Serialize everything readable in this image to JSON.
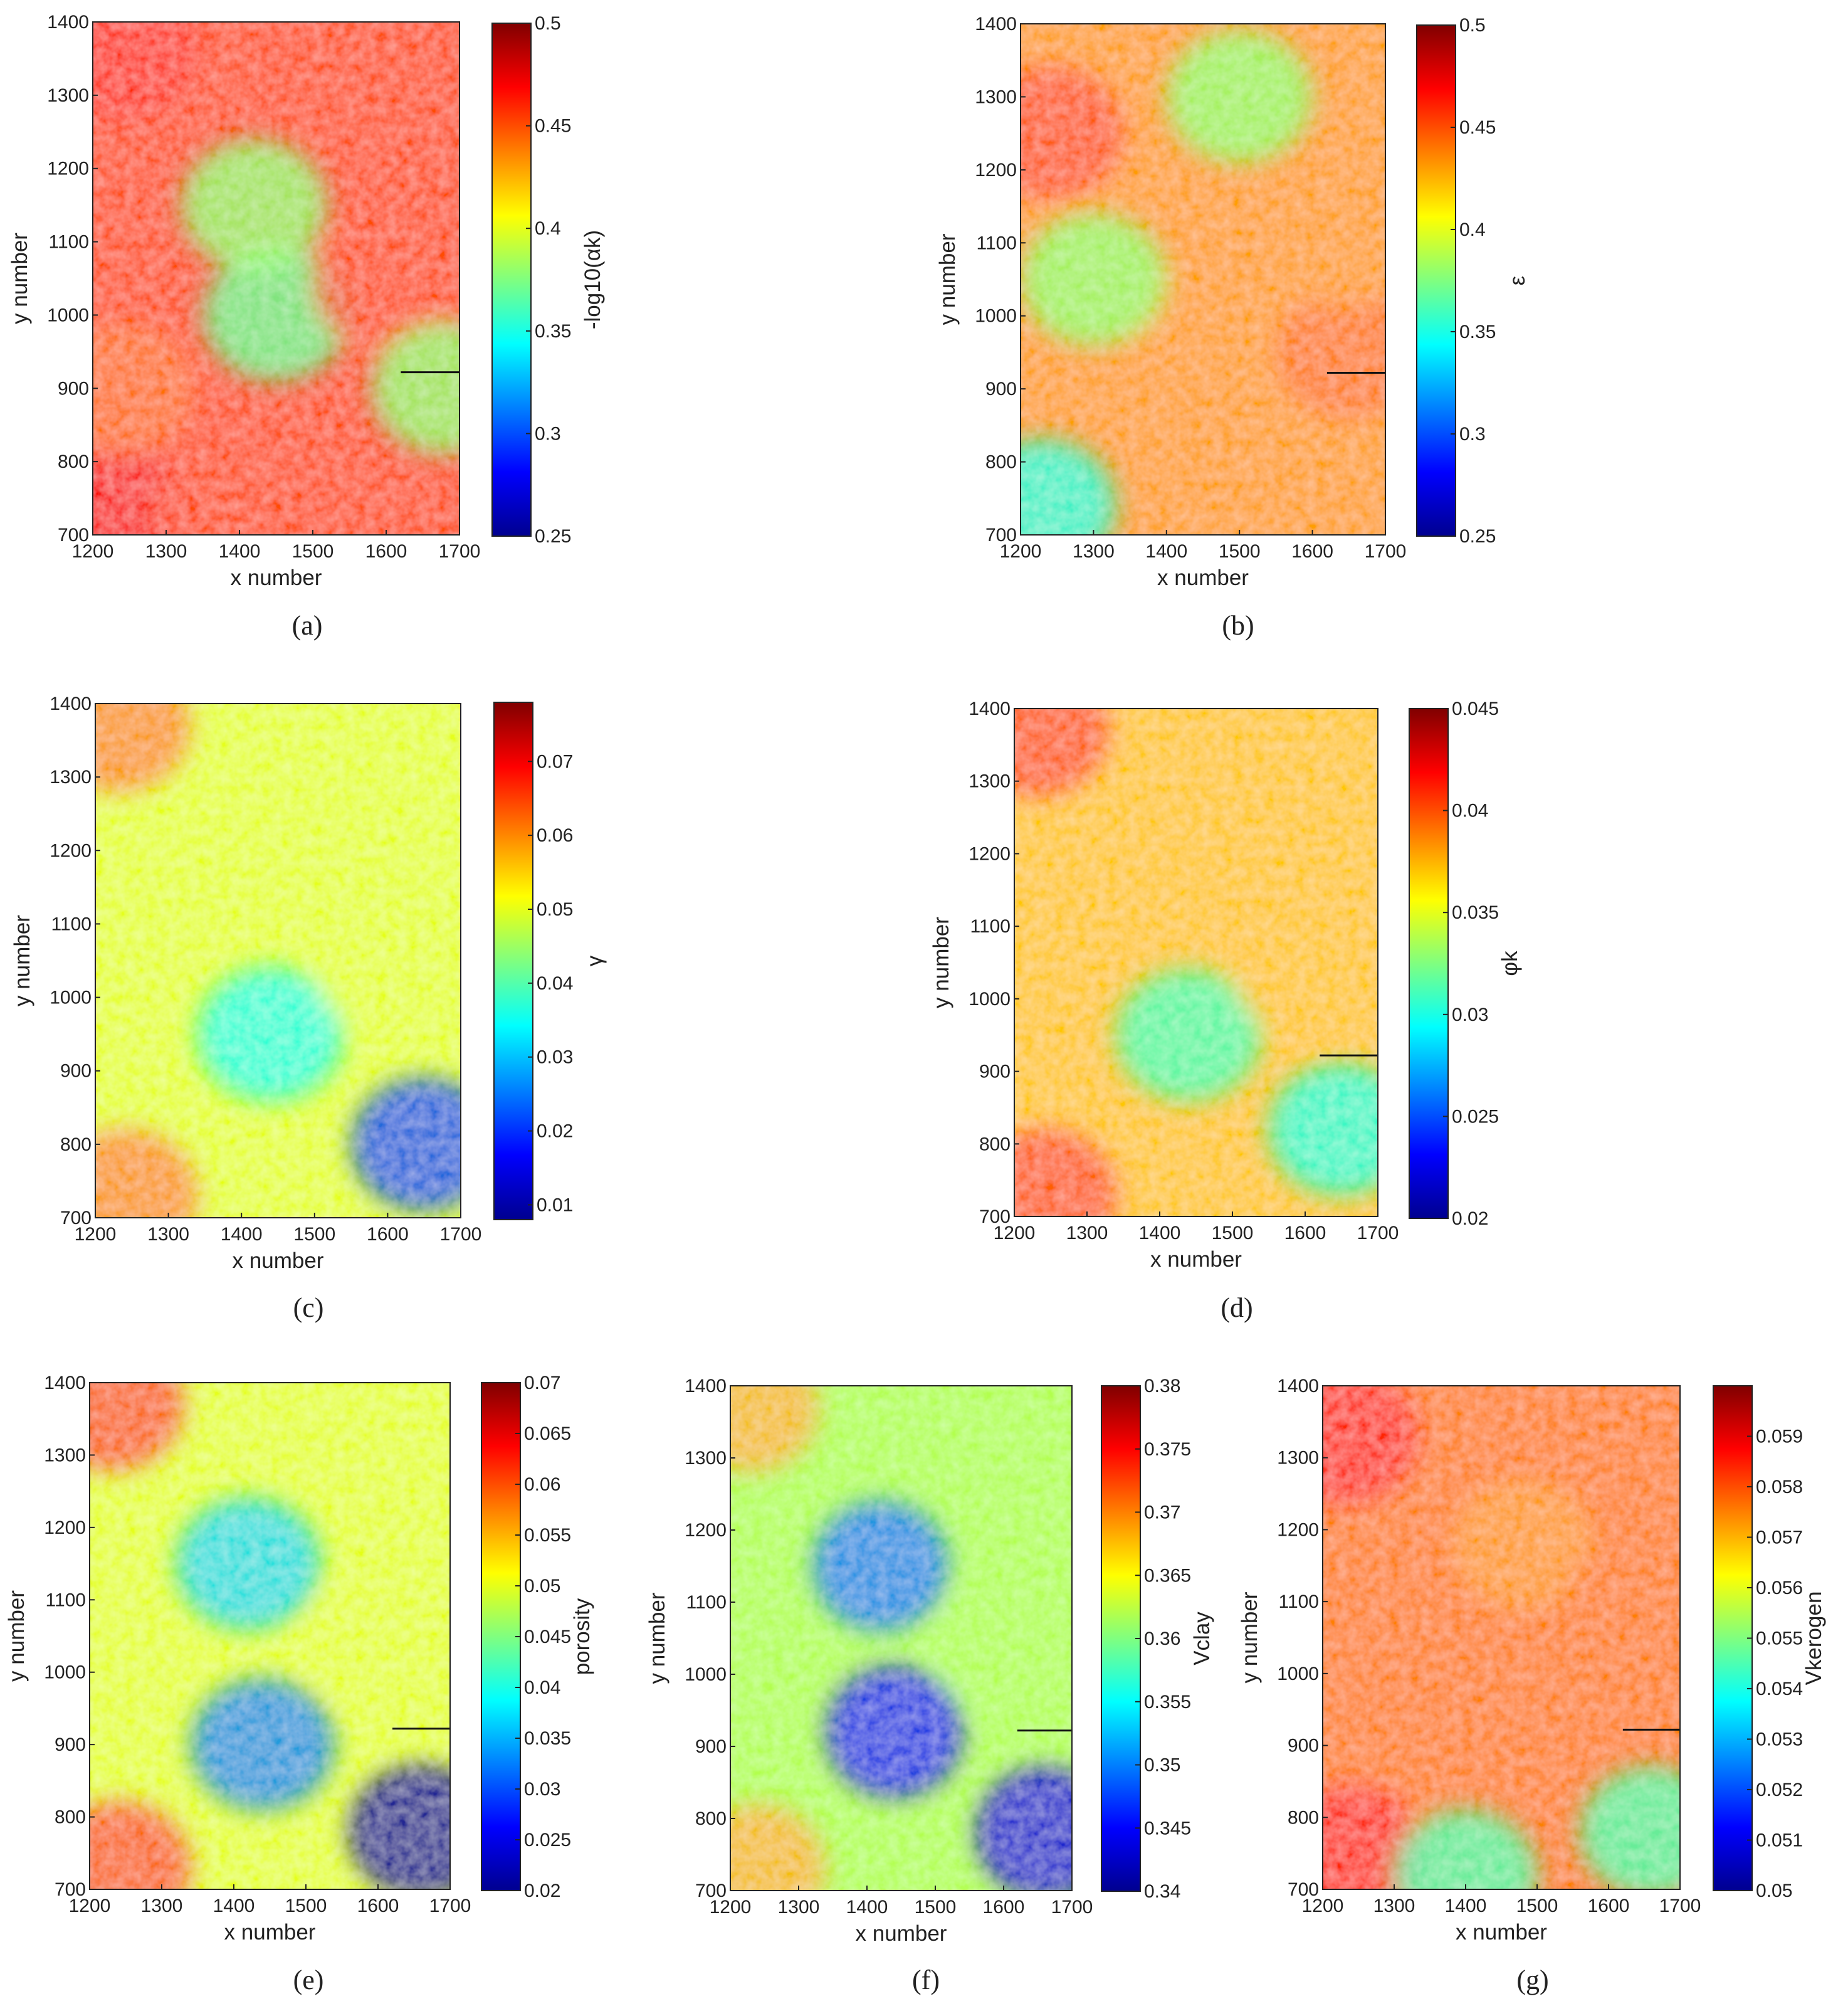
{
  "chart_data": [
    {
      "type": "heatmap",
      "caption": "(a)",
      "xlabel": "x number",
      "ylabel": "y number",
      "colorbar_label": "-log10(αk)",
      "xlim": [
        1200,
        1700
      ],
      "ylim": [
        700,
        1400
      ],
      "x_ticks": [
        "1200",
        "1300",
        "1400",
        "1500",
        "1600",
        "1700"
      ],
      "y_ticks": [
        "700",
        "800",
        "900",
        "1000",
        "1100",
        "1200",
        "1300",
        "1400"
      ],
      "clim": [
        0.25,
        0.5
      ],
      "colorbar_ticks": [
        "0.25",
        "0.3",
        "0.35",
        "0.4",
        "0.45",
        "0.5"
      ],
      "colormap": "jet",
      "marker_line": {
        "x": [
          1620,
          1700
        ],
        "y": 922
      },
      "features": [
        {
          "x": 1240,
          "y": 730,
          "value": 0.47
        },
        {
          "x": 1380,
          "y": 730,
          "value": 0.45
        },
        {
          "x": 1240,
          "y": 1360,
          "value": 0.46
        },
        {
          "x": 1560,
          "y": 1320,
          "value": 0.45
        },
        {
          "x": 1450,
          "y": 1000,
          "value": 0.37
        },
        {
          "x": 1420,
          "y": 1150,
          "value": 0.38
        },
        {
          "x": 1600,
          "y": 1040,
          "value": 0.45
        },
        {
          "x": 1240,
          "y": 900,
          "value": 0.44
        },
        {
          "x": 1680,
          "y": 900,
          "value": 0.38
        }
      ]
    },
    {
      "type": "heatmap",
      "caption": "(b)",
      "xlabel": "x number",
      "ylabel": "y number",
      "colorbar_label": "ε",
      "xlim": [
        1200,
        1700
      ],
      "ylim": [
        700,
        1400
      ],
      "x_ticks": [
        "1200",
        "1300",
        "1400",
        "1500",
        "1600",
        "1700"
      ],
      "y_ticks": [
        "700",
        "800",
        "900",
        "1000",
        "1100",
        "1200",
        "1300",
        "1400"
      ],
      "clim": [
        0.25,
        0.5
      ],
      "colorbar_ticks": [
        "0.25",
        "0.3",
        "0.35",
        "0.4",
        "0.45",
        "0.5"
      ],
      "colormap": "jet",
      "marker_line": {
        "x": [
          1620,
          1700
        ],
        "y": 922
      },
      "features": [
        {
          "x": 1230,
          "y": 740,
          "value": 0.35
        },
        {
          "x": 1450,
          "y": 980,
          "value": 0.43
        },
        {
          "x": 1650,
          "y": 950,
          "value": 0.44
        },
        {
          "x": 1640,
          "y": 1100,
          "value": 0.43
        },
        {
          "x": 1240,
          "y": 1250,
          "value": 0.45
        },
        {
          "x": 1500,
          "y": 1300,
          "value": 0.38
        },
        {
          "x": 1300,
          "y": 1050,
          "value": 0.38
        }
      ]
    },
    {
      "type": "heatmap",
      "caption": "(c)",
      "xlabel": "x number",
      "ylabel": "y number",
      "colorbar_label": "γ",
      "xlim": [
        1200,
        1700
      ],
      "ylim": [
        700,
        1400
      ],
      "x_ticks": [
        "1200",
        "1300",
        "1400",
        "1500",
        "1600",
        "1700"
      ],
      "y_ticks": [
        "700",
        "800",
        "900",
        "1000",
        "1100",
        "1200",
        "1300",
        "1400"
      ],
      "clim": [
        0.008,
        0.078
      ],
      "colorbar_ticks": [
        "0.01",
        "0.02",
        "0.03",
        "0.04",
        "0.05",
        "0.06",
        "0.07"
      ],
      "colormap": "jet",
      "features": [
        {
          "x": 1240,
          "y": 730,
          "value": 0.06
        },
        {
          "x": 1230,
          "y": 1370,
          "value": 0.06
        },
        {
          "x": 1440,
          "y": 950,
          "value": 0.035
        },
        {
          "x": 1650,
          "y": 800,
          "value": 0.022
        },
        {
          "x": 1600,
          "y": 1040,
          "value": 0.05
        }
      ]
    },
    {
      "type": "heatmap",
      "caption": "(d)",
      "xlabel": "x number",
      "ylabel": "y number",
      "colorbar_label": "φk",
      "xlim": [
        1200,
        1700
      ],
      "ylim": [
        700,
        1400
      ],
      "x_ticks": [
        "1200",
        "1300",
        "1400",
        "1500",
        "1600",
        "1700"
      ],
      "y_ticks": [
        "700",
        "800",
        "900",
        "1000",
        "1100",
        "1200",
        "1300",
        "1400"
      ],
      "clim": [
        0.02,
        0.045
      ],
      "colorbar_ticks": [
        "0.02",
        "0.025",
        "0.03",
        "0.035",
        "0.04",
        "0.045"
      ],
      "colormap": "jet",
      "marker_line": {
        "x": [
          1620,
          1700
        ],
        "y": 922
      },
      "features": [
        {
          "x": 1240,
          "y": 730,
          "value": 0.04
        },
        {
          "x": 1230,
          "y": 1370,
          "value": 0.04
        },
        {
          "x": 1440,
          "y": 950,
          "value": 0.031
        },
        {
          "x": 1650,
          "y": 820,
          "value": 0.03
        },
        {
          "x": 1600,
          "y": 1040,
          "value": 0.037
        }
      ]
    },
    {
      "type": "heatmap",
      "caption": "(e)",
      "xlabel": "x number",
      "ylabel": "y number",
      "colorbar_label": "porosity",
      "xlim": [
        1200,
        1700
      ],
      "ylim": [
        700,
        1400
      ],
      "x_ticks": [
        "1200",
        "1300",
        "1400",
        "1500",
        "1600",
        "1700"
      ],
      "y_ticks": [
        "700",
        "800",
        "900",
        "1000",
        "1100",
        "1200",
        "1300",
        "1400"
      ],
      "clim": [
        0.02,
        0.07
      ],
      "colorbar_ticks": [
        "0.02",
        "0.025",
        "0.03",
        "0.035",
        "0.04",
        "0.045",
        "0.05",
        "0.055",
        "0.06",
        "0.065",
        "0.07"
      ],
      "colormap": "jet",
      "marker_line": {
        "x": [
          1620,
          1700
        ],
        "y": 922
      },
      "features": [
        {
          "x": 1240,
          "y": 730,
          "value": 0.06
        },
        {
          "x": 1230,
          "y": 1370,
          "value": 0.06
        },
        {
          "x": 1440,
          "y": 900,
          "value": 0.033
        },
        {
          "x": 1660,
          "y": 780,
          "value": 0.022
        },
        {
          "x": 1420,
          "y": 1150,
          "value": 0.037
        },
        {
          "x": 1600,
          "y": 1040,
          "value": 0.05
        }
      ]
    },
    {
      "type": "heatmap",
      "caption": "(f)",
      "xlabel": "x number",
      "ylabel": "y number",
      "colorbar_label": "Vclay",
      "xlim": [
        1200,
        1700
      ],
      "ylim": [
        700,
        1400
      ],
      "x_ticks": [
        "1200",
        "1300",
        "1400",
        "1500",
        "1600",
        "1700"
      ],
      "y_ticks": [
        "700",
        "800",
        "900",
        "1000",
        "1100",
        "1200",
        "1300",
        "1400"
      ],
      "clim": [
        0.34,
        0.38
      ],
      "colorbar_ticks": [
        "0.34",
        "0.345",
        "0.35",
        "0.355",
        "0.36",
        "0.365",
        "0.37",
        "0.375",
        "0.38"
      ],
      "colormap": "jet",
      "marker_line": {
        "x": [
          1620,
          1700
        ],
        "y": 922
      },
      "features": [
        {
          "x": 1240,
          "y": 730,
          "value": 0.368
        },
        {
          "x": 1230,
          "y": 1370,
          "value": 0.368
        },
        {
          "x": 1440,
          "y": 920,
          "value": 0.346
        },
        {
          "x": 1660,
          "y": 780,
          "value": 0.344
        },
        {
          "x": 1420,
          "y": 1150,
          "value": 0.35
        },
        {
          "x": 1600,
          "y": 1040,
          "value": 0.362
        }
      ]
    },
    {
      "type": "heatmap",
      "caption": "(g)",
      "xlabel": "x number",
      "ylabel": "y number",
      "colorbar_label": "Vkerogen",
      "xlim": [
        1200,
        1700
      ],
      "ylim": [
        700,
        1400
      ],
      "x_ticks": [
        "1200",
        "1300",
        "1400",
        "1500",
        "1600",
        "1700"
      ],
      "y_ticks": [
        "700",
        "800",
        "900",
        "1000",
        "1100",
        "1200",
        "1300",
        "1400"
      ],
      "clim": [
        0.05,
        0.06
      ],
      "colorbar_ticks": [
        "0.05",
        "0.051",
        "0.052",
        "0.053",
        "0.054",
        "0.055",
        "0.056",
        "0.057",
        "0.058",
        "0.059"
      ],
      "colormap": "jet",
      "marker_line": {
        "x": [
          1620,
          1700
        ],
        "y": 922
      },
      "features": [
        {
          "x": 1240,
          "y": 750,
          "value": 0.0585
        },
        {
          "x": 1230,
          "y": 1330,
          "value": 0.0585
        },
        {
          "x": 1500,
          "y": 1030,
          "value": 0.0575
        },
        {
          "x": 1480,
          "y": 1180,
          "value": 0.0572
        },
        {
          "x": 1660,
          "y": 780,
          "value": 0.0545
        },
        {
          "x": 1400,
          "y": 720,
          "value": 0.0545
        },
        {
          "x": 1640,
          "y": 1100,
          "value": 0.0575
        }
      ]
    }
  ]
}
